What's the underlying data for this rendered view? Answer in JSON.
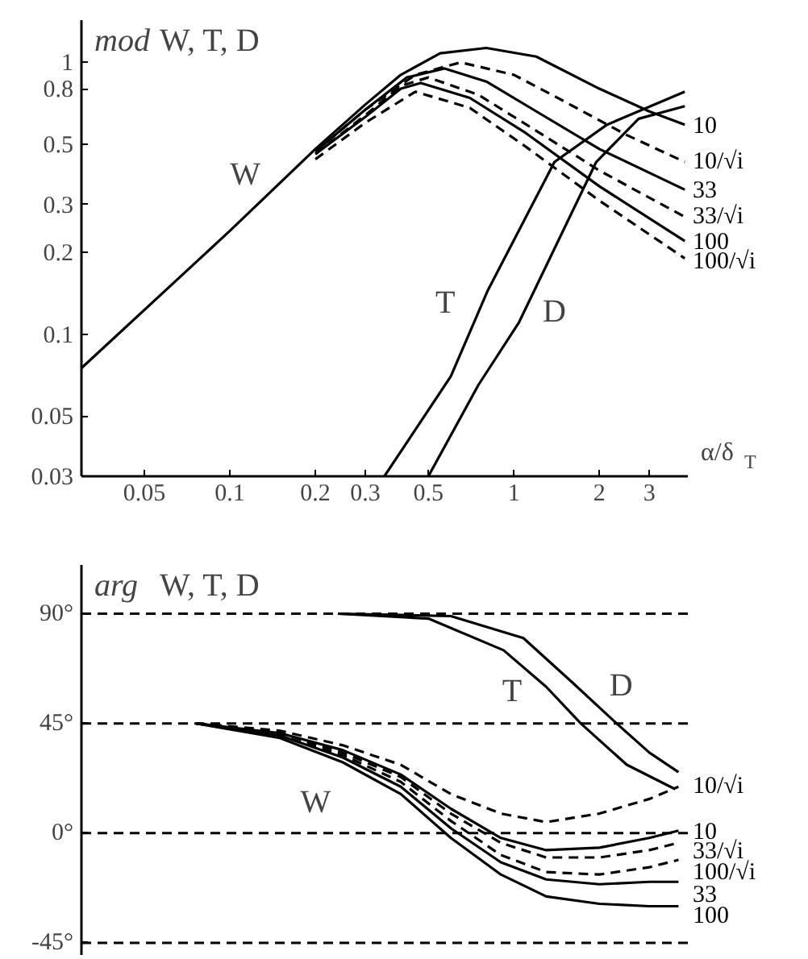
{
  "chart_data": [
    {
      "type": "line",
      "title": "mod W, T, D",
      "xlabel": "α/δ$_{T}$",
      "log": "xy",
      "xlim": [
        0.03,
        4.1
      ],
      "xticks": [
        0.05,
        0.1,
        0.2,
        0.3,
        0.5,
        1,
        2,
        3
      ],
      "ylim": [
        0.03,
        1.43
      ],
      "yticks": [
        0.03,
        0.05,
        0.1,
        0.2,
        0.3,
        0.5,
        0.8,
        1
      ],
      "series": [
        {
          "name": "10",
          "color": "#000000",
          "line_style": "solid",
          "x": [
            0.03,
            0.1,
            0.2,
            0.3,
            0.4,
            0.55,
            0.8,
            1.2,
            2,
            3,
            4
          ],
          "values": [
            0.075,
            0.24,
            0.48,
            0.7,
            0.9,
            1.08,
            1.13,
            1.05,
            0.8,
            0.66,
            0.59
          ]
        },
        {
          "name": "10/√i",
          "color": "#000000",
          "line_style": "dashed",
          "x": [
            0.2,
            0.3,
            0.45,
            0.65,
            1,
            1.5,
            2.5,
            4
          ],
          "values": [
            0.47,
            0.67,
            0.9,
            1.0,
            0.9,
            0.72,
            0.54,
            0.43
          ]
        },
        {
          "name": "33",
          "color": "#000000",
          "line_style": "solid",
          "x": [
            0.2,
            0.3,
            0.42,
            0.57,
            0.8,
            1.2,
            2,
            4
          ],
          "values": [
            0.47,
            0.67,
            0.88,
            0.95,
            0.85,
            0.66,
            0.48,
            0.34
          ]
        },
        {
          "name": "33/√i",
          "color": "#000000",
          "line_style": "dashed",
          "x": [
            0.2,
            0.3,
            0.4,
            0.5,
            0.75,
            1.2,
            2,
            4
          ],
          "values": [
            0.46,
            0.64,
            0.82,
            0.88,
            0.76,
            0.56,
            0.4,
            0.27
          ]
        },
        {
          "name": "100",
          "color": "#000000",
          "line_style": "solid",
          "x": [
            0.2,
            0.3,
            0.4,
            0.47,
            0.7,
            1.1,
            2,
            4
          ],
          "values": [
            0.46,
            0.63,
            0.8,
            0.84,
            0.74,
            0.55,
            0.35,
            0.22
          ]
        },
        {
          "name": "100/√i",
          "color": "#000000",
          "line_style": "dashed",
          "x": [
            0.2,
            0.3,
            0.45,
            0.7,
            1.1,
            2,
            4
          ],
          "values": [
            0.44,
            0.6,
            0.78,
            0.68,
            0.49,
            0.31,
            0.19
          ]
        },
        {
          "color": "#000000",
          "line_style": "solid",
          "x": [
            0.35,
            0.6,
            0.81,
            1.39,
            2.13,
            4
          ],
          "values": [
            0.03,
            0.07,
            0.145,
            0.43,
            0.59,
            0.78
          ]
        },
        {
          "color": "#000000",
          "line_style": "solid",
          "x": [
            0.5,
            0.75,
            1.04,
            1.95,
            2.75,
            4
          ],
          "values": [
            0.03,
            0.065,
            0.11,
            0.43,
            0.62,
            0.69
          ]
        }
      ],
      "annotations": [
        "W",
        "T",
        "D"
      ]
    },
    {
      "type": "line",
      "title": "arg W, T, D",
      "log": "x",
      "tick_labels": "y",
      "xlim": [
        0.03,
        4.1
      ],
      "ylim": [
        -50,
        110
      ],
      "yticks": [
        {
          "value": 90,
          "label": "90°"
        },
        {
          "value": 45,
          "label": "45°"
        },
        {
          "value": 0,
          "label": "0°"
        },
        {
          "value": -45,
          "label": "-45°"
        }
      ],
      "ref_lines": [
        {
          "axis": "y",
          "value": 90,
          "line_style": "dashed"
        },
        {
          "axis": "y",
          "value": 45,
          "line_style": "dashed"
        },
        {
          "axis": "y",
          "value": 0,
          "line_style": "dashed"
        },
        {
          "axis": "y",
          "value": -45,
          "line_style": "dashed"
        }
      ],
      "series": [
        {
          "name": "10/√i",
          "color": "#000000",
          "line_style": "dashed",
          "x": [
            0.076,
            0.15,
            0.25,
            0.4,
            0.6,
            0.9,
            1.3,
            2,
            3,
            3.8
          ],
          "values": [
            45,
            42,
            36,
            28,
            16,
            8,
            4.5,
            8,
            14,
            19
          ]
        },
        {
          "name": "10",
          "color": "#000000",
          "line_style": "solid",
          "x": [
            0.076,
            0.15,
            0.25,
            0.4,
            0.6,
            0.9,
            1.3,
            2,
            3,
            3.8
          ],
          "values": [
            45,
            41,
            34,
            24,
            10,
            -2,
            -7,
            -6,
            -2,
            1
          ]
        },
        {
          "name": "33/√i",
          "color": "#000000",
          "line_style": "dashed",
          "x": [
            0.076,
            0.15,
            0.25,
            0.4,
            0.6,
            0.9,
            1.3,
            2,
            3,
            3.8
          ],
          "values": [
            45,
            41,
            33,
            23,
            8,
            -4,
            -10,
            -10,
            -7,
            -4
          ]
        },
        {
          "name": "100/√i",
          "color": "#000000",
          "line_style": "dashed",
          "x": [
            0.076,
            0.15,
            0.25,
            0.4,
            0.6,
            0.9,
            1.3,
            2,
            3,
            3.8
          ],
          "values": [
            45,
            40,
            32,
            21,
            5,
            -9,
            -16,
            -17,
            -14,
            -11
          ]
        },
        {
          "name": "33",
          "color": "#000000",
          "line_style": "solid",
          "x": [
            0.076,
            0.15,
            0.25,
            0.4,
            0.6,
            0.9,
            1.3,
            2,
            3,
            3.8
          ],
          "values": [
            45,
            40,
            31,
            19,
            2,
            -12,
            -19,
            -21,
            -20,
            -20
          ]
        },
        {
          "name": "100",
          "color": "#000000",
          "line_style": "solid",
          "x": [
            0.076,
            0.15,
            0.25,
            0.4,
            0.6,
            0.9,
            1.3,
            2,
            3,
            3.8
          ],
          "values": [
            45,
            39,
            29,
            16,
            -2,
            -17,
            -26,
            -29,
            -30,
            -30
          ]
        },
        {
          "color": "#000000",
          "line_style": "solid",
          "x": [
            0.24,
            0.5,
            0.92,
            1.3,
            1.72,
            2.5,
            3.7
          ],
          "values": [
            90,
            88,
            75,
            60,
            45,
            28,
            18
          ]
        },
        {
          "color": "#000000",
          "line_style": "solid",
          "x": [
            0.24,
            0.6,
            1.08,
            1.6,
            2.3,
            3.0,
            3.8
          ],
          "values": [
            90,
            89,
            80,
            62,
            45,
            33,
            25
          ]
        }
      ],
      "annotations": [
        "W",
        "T",
        "D"
      ]
    }
  ]
}
